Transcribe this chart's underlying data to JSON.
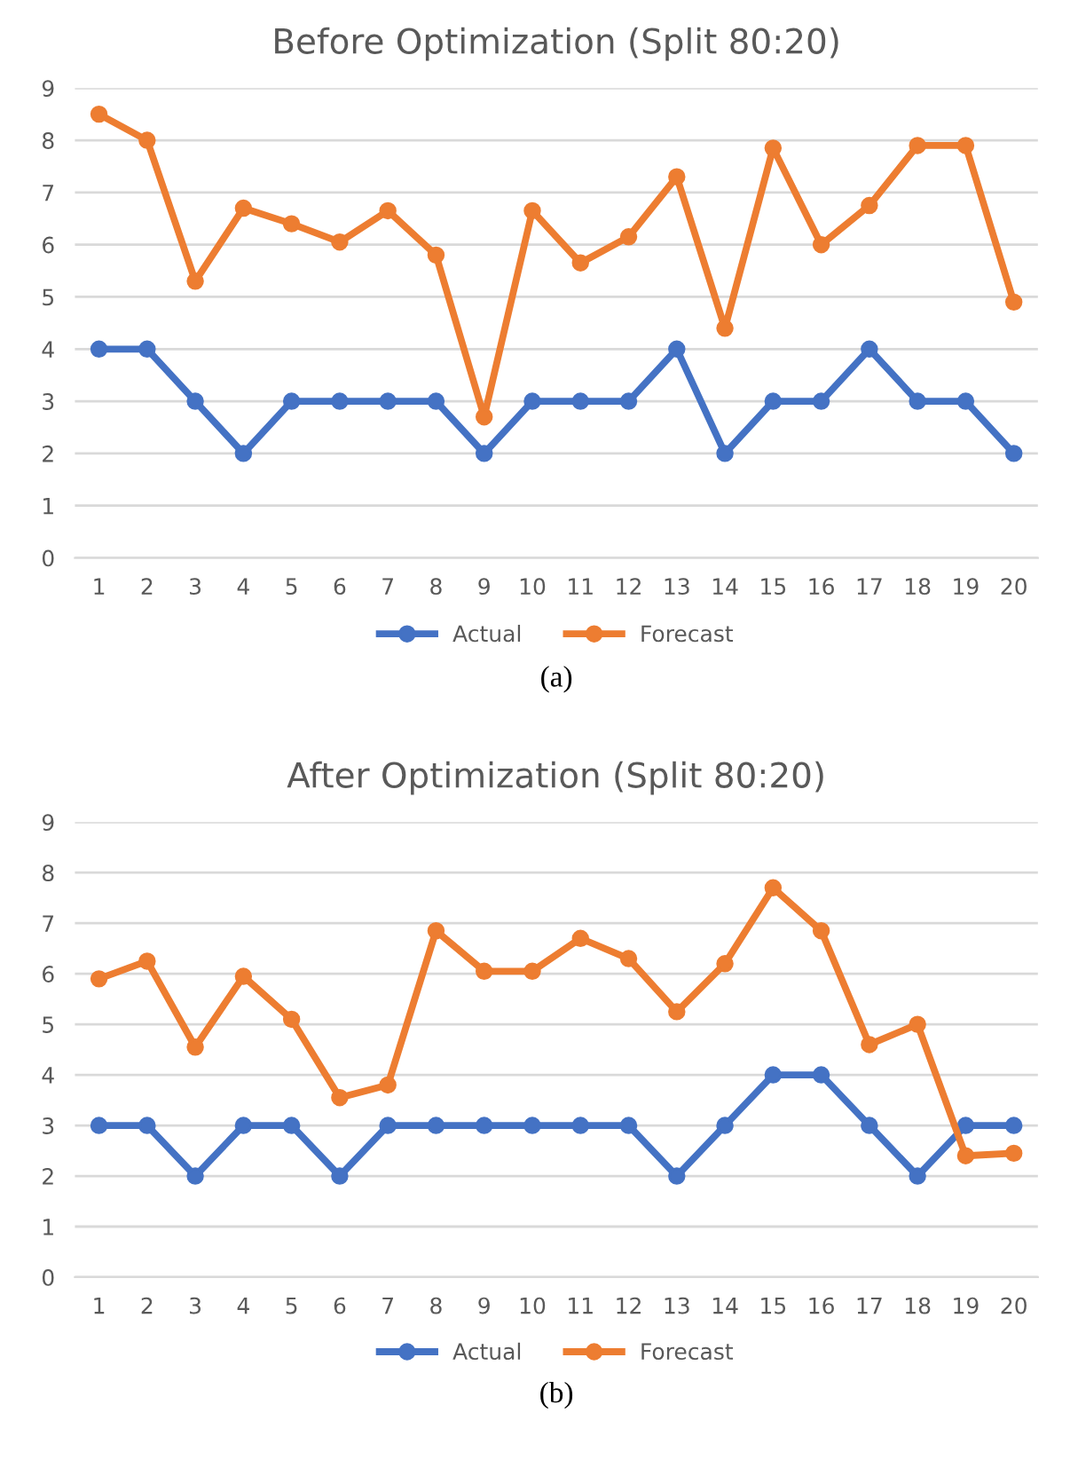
{
  "chart_data": [
    {
      "type": "line",
      "title": "Before Optimization (Split 80:20)",
      "categories": [
        "1",
        "2",
        "3",
        "4",
        "5",
        "6",
        "7",
        "8",
        "9",
        "10",
        "11",
        "12",
        "13",
        "14",
        "15",
        "16",
        "17",
        "18",
        "19",
        "20"
      ],
      "series": [
        {
          "name": "Actual",
          "color": "#4472c4",
          "values": [
            4,
            4,
            3,
            2,
            3,
            3,
            3,
            3,
            2,
            3,
            3,
            3,
            4,
            2,
            3,
            3,
            4,
            3,
            3,
            2
          ]
        },
        {
          "name": "Forecast",
          "color": "#ed7d31",
          "values": [
            8.5,
            8.0,
            5.3,
            6.7,
            6.4,
            6.05,
            6.65,
            5.8,
            2.7,
            6.65,
            5.65,
            6.15,
            7.3,
            4.4,
            7.85,
            6.0,
            6.75,
            7.9,
            7.9,
            4.9
          ]
        }
      ],
      "ylim": [
        0,
        9
      ],
      "yticks": [
        0,
        1,
        2,
        3,
        4,
        5,
        6,
        7,
        8,
        9
      ],
      "grid": "y",
      "legend": "bottom",
      "marker": "circle",
      "line_style": "solid",
      "annotations": [
        "(a)"
      ]
    },
    {
      "type": "line",
      "title": "After Optimization (Split 80:20)",
      "categories": [
        "1",
        "2",
        "3",
        "4",
        "5",
        "6",
        "7",
        "8",
        "9",
        "10",
        "11",
        "12",
        "13",
        "14",
        "15",
        "16",
        "17",
        "18",
        "19",
        "20"
      ],
      "series": [
        {
          "name": "Actual",
          "color": "#4472c4",
          "values": [
            3,
            3,
            2,
            3,
            3,
            2,
            3,
            3,
            3,
            3,
            3,
            3,
            2,
            3,
            4,
            4,
            3,
            2,
            3,
            3
          ]
        },
        {
          "name": "Forecast",
          "color": "#ed7d31",
          "values": [
            5.9,
            6.25,
            4.55,
            5.95,
            5.1,
            3.55,
            3.8,
            6.85,
            6.05,
            6.05,
            6.7,
            6.3,
            5.25,
            6.2,
            7.7,
            6.85,
            4.6,
            5.0,
            2.4,
            2.45
          ]
        }
      ],
      "ylim": [
        0,
        9
      ],
      "yticks": [
        0,
        1,
        2,
        3,
        4,
        5,
        6,
        7,
        8,
        9
      ],
      "grid": "y",
      "legend": "bottom",
      "marker": "circle",
      "line_style": "solid",
      "annotations": [
        "(b)"
      ]
    }
  ]
}
